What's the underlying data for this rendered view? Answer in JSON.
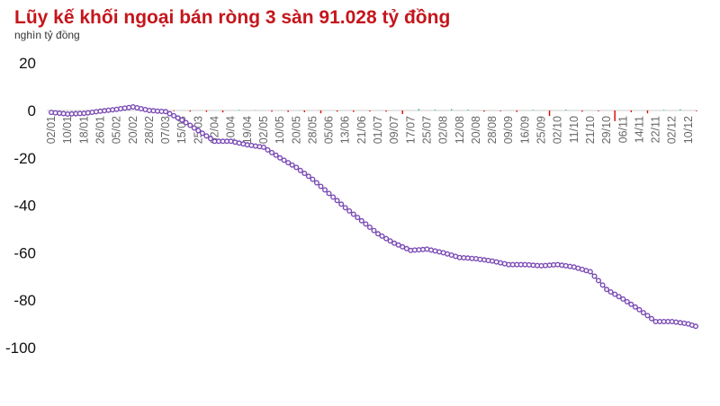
{
  "chart_data": {
    "type": "line",
    "title": "Lũy kế khối ngoại bán ròng 3 sàn 91.028 tỷ đồng",
    "ylabel": "nghìn tỷ đồng",
    "xlabel": "",
    "ylim": [
      -100,
      20
    ],
    "yticks": [
      20,
      0,
      -20,
      -40,
      -60,
      -80,
      -100
    ],
    "grid": false,
    "categories": [
      "02/01",
      "10/01",
      "18/01",
      "26/01",
      "05/02",
      "20/02",
      "28/02",
      "07/03",
      "15/03",
      "25/03",
      "02/04",
      "10/04",
      "19/04",
      "02/05",
      "10/05",
      "20/05",
      "28/05",
      "05/06",
      "13/06",
      "21/06",
      "01/07",
      "09/07",
      "17/07",
      "25/07",
      "02/08",
      "12/08",
      "20/08",
      "28/08",
      "09/09",
      "16/09",
      "25/09",
      "02/10",
      "11/10",
      "21/10",
      "29/10",
      "06/11",
      "14/11",
      "22/11",
      "02/12",
      "10/12"
    ],
    "series": [
      {
        "values": [
          -0.8,
          -1.5,
          -1.2,
          -0.3,
          0.5,
          1.5,
          0,
          -0.5,
          -4,
          -8.5,
          -13,
          -13,
          -14.5,
          -15.5,
          -20,
          -24,
          -29,
          -35,
          -41,
          -46.5,
          -52,
          -56,
          -59,
          -58.5,
          -60,
          -62,
          -62.5,
          -63.5,
          -65,
          -65,
          -65.5,
          -65,
          -66,
          -68,
          -75.5,
          -79.5,
          -84,
          -89,
          -89,
          -90
        ],
        "end_value": -91.028,
        "color": "#7b4bb5"
      }
    ],
    "daily_net": {
      "values": [
        0,
        0,
        0,
        0.1,
        0,
        0.2,
        0,
        -0.3,
        -0.5,
        -0.6,
        -0.8,
        0.3,
        0.2,
        -0.5,
        -0.6,
        -0.7,
        -1.2,
        -0.5,
        -0.6,
        -0.4,
        -0.5,
        -1.5,
        0.7,
        0.4,
        0.6,
        0.4,
        -0.5,
        -0.3,
        -0.6,
        0.3,
        -2.3,
        0.4,
        -0.5,
        -0.3,
        -4.5,
        -0.7,
        -1.2,
        0.3,
        0.5,
        -0.3
      ],
      "positive_color": "#2ecc71",
      "negative_color": "#e00000"
    }
  }
}
